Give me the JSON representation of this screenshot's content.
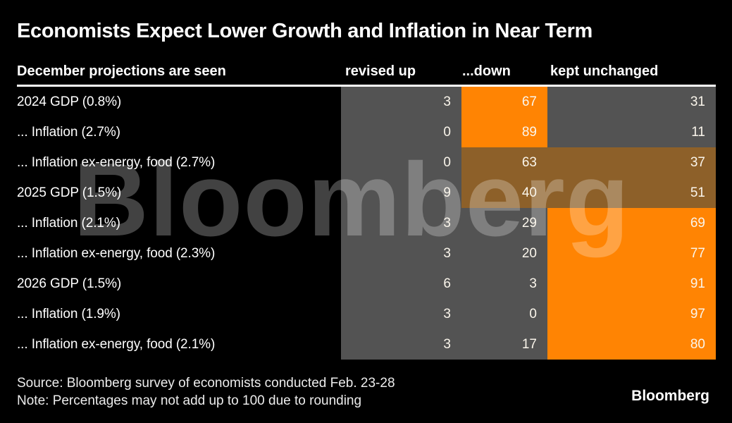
{
  "title": "Economists Expect Lower Growth and Inflation in Near Term",
  "header": {
    "label": "December projections are seen",
    "col_up": "revised up",
    "col_down": "...down",
    "col_unchanged": "kept unchanged"
  },
  "watermark_text": "Bloomberg",
  "footer": {
    "source": "Source: Bloomberg survey of economists conducted Feb. 23-28",
    "note": "Note: Percentages may not add up to 100 due to rounding",
    "logo": "Bloomberg"
  },
  "colors": {
    "background": "#000000",
    "cell_gray": "#535353",
    "highlight_orange": "#FF8403",
    "highlight_brown": "#8D6029",
    "rule": "#FFFFFF"
  },
  "table": {
    "rows": [
      {
        "label": "2024 GDP (0.8%)",
        "up": "3",
        "down": "67",
        "unchanged": "31",
        "down_highlight": "orange",
        "unchanged_highlight": "gray"
      },
      {
        "label": "... Inflation (2.7%)",
        "up": "0",
        "down": "89",
        "unchanged": "11",
        "down_highlight": "orange",
        "unchanged_highlight": "gray"
      },
      {
        "label": "... Inflation ex-energy, food (2.7%)",
        "up": "0",
        "down": "63",
        "unchanged": "37",
        "down_highlight": "brown",
        "unchanged_highlight": "brown"
      },
      {
        "label": "2025 GDP (1.5%)",
        "up": "9",
        "down": "40",
        "unchanged": "51",
        "down_highlight": "brown",
        "unchanged_highlight": "brown"
      },
      {
        "label": "... Inflation (2.1%)",
        "up": "3",
        "down": "29",
        "unchanged": "69",
        "down_highlight": "gray",
        "unchanged_highlight": "orange"
      },
      {
        "label": "... Inflation ex-energy, food (2.3%)",
        "up": "3",
        "down": "20",
        "unchanged": "77",
        "down_highlight": "gray",
        "unchanged_highlight": "orange"
      },
      {
        "label": "2026 GDP (1.5%)",
        "up": "6",
        "down": "3",
        "unchanged": "91",
        "down_highlight": "gray",
        "unchanged_highlight": "orange"
      },
      {
        "label": "... Inflation (1.9%)",
        "up": "3",
        "down": "0",
        "unchanged": "97",
        "down_highlight": "gray",
        "unchanged_highlight": "orange"
      },
      {
        "label": "... Inflation ex-energy, food (2.1%)",
        "up": "3",
        "down": "17",
        "unchanged": "80",
        "down_highlight": "gray",
        "unchanged_highlight": "orange"
      }
    ]
  },
  "chart_data": {
    "type": "table",
    "title": "Economists Expect Lower Growth and Inflation in Near Term",
    "subtitle": "December projections are seen",
    "categories": [
      "2024 GDP (0.8%)",
      "... Inflation (2.7%)",
      "... Inflation ex-energy, food (2.7%)",
      "2025 GDP (1.5%)",
      "... Inflation (2.1%)",
      "... Inflation ex-energy, food (2.3%)",
      "2026 GDP (1.5%)",
      "... Inflation (1.9%)",
      "... Inflation ex-energy, food (2.1%)"
    ],
    "series": [
      {
        "name": "revised up",
        "values": [
          3,
          0,
          0,
          9,
          3,
          3,
          6,
          3,
          3
        ]
      },
      {
        "name": "...down",
        "values": [
          67,
          89,
          63,
          40,
          29,
          20,
          3,
          0,
          17
        ]
      },
      {
        "name": "kept unchanged",
        "values": [
          31,
          11,
          37,
          51,
          69,
          77,
          91,
          97,
          80
        ]
      }
    ],
    "units": "percent of respondents",
    "source": "Source: Bloomberg survey of economists conducted Feb. 23-28",
    "note": "Note: Percentages may not add up to 100 due to rounding",
    "legend_position": "header-row",
    "grid": false
  }
}
